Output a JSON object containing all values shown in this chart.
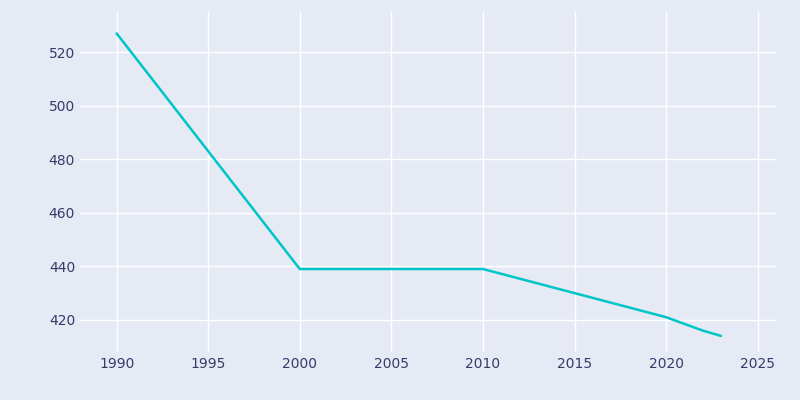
{
  "years": [
    1990,
    2000,
    2010,
    2020,
    2022,
    2023
  ],
  "population": [
    527,
    439,
    439,
    421,
    416,
    414
  ],
  "line_color": "#00C5C8",
  "background_color": "#e6eaf4",
  "grid_color": "#ffffff",
  "tick_label_color": "#3a3a6a",
  "xlim": [
    1988,
    2026
  ],
  "ylim": [
    408,
    535
  ],
  "xticks": [
    1990,
    1995,
    2000,
    2005,
    2010,
    2015,
    2020,
    2025
  ],
  "yticks": [
    420,
    440,
    460,
    480,
    500,
    520
  ],
  "linewidth": 1.8
}
